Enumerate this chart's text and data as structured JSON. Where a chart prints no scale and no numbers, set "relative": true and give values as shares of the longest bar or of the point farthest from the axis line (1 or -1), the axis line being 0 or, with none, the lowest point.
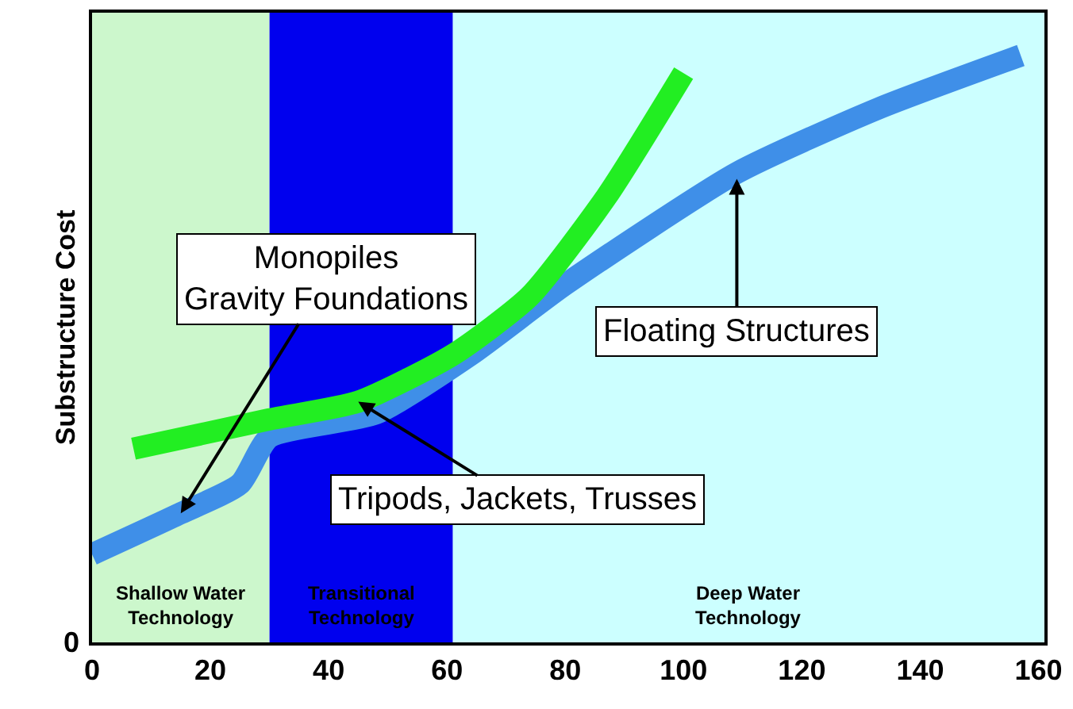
{
  "chart_data": {
    "type": "line",
    "ylabel": "Substructure Cost",
    "relative": true,
    "xlim": [
      0,
      161
    ],
    "xticks": [
      0,
      20,
      40,
      60,
      80,
      100,
      120,
      140,
      160
    ],
    "series": [
      {
        "color": "#3f8fe8",
        "x": [
          0,
          15,
          25,
          30,
          48,
          64,
          80,
          109,
          133,
          157
        ],
        "values": [
          0.15,
          0.22,
          0.27,
          0.35,
          0.39,
          0.49,
          0.61,
          0.8,
          0.91,
          1.0
        ]
      },
      {
        "color": "#22ee22",
        "x": [
          7,
          30,
          45,
          61,
          74,
          87,
          100
        ],
        "values": [
          0.33,
          0.38,
          0.41,
          0.49,
          0.59,
          0.76,
          0.97
        ]
      }
    ],
    "bands": [
      {
        "axis": "x",
        "from": 0,
        "to": 30,
        "label": "Shallow Water\nTechnology",
        "color": "#ccf7cc"
      },
      {
        "axis": "x",
        "from": 30,
        "to": 61,
        "label": "Transitional\nTechnology",
        "color": "#0000ee"
      },
      {
        "axis": "x",
        "from": 61,
        "to": 161,
        "label": "Deep Water\nTechnology",
        "color": "#ccffff"
      }
    ],
    "annotations": [
      {
        "text": "Monopiles\nGravity Foundations",
        "x": 15,
        "y": 0.22
      },
      {
        "text": "Tripods, Jackets, Trusses",
        "x": 45,
        "y": 0.41
      },
      {
        "text": "Floating Structures",
        "x": 109,
        "y": 0.79
      },
      "0"
    ],
    "grid": false,
    "marker": "none",
    "line_style": "solid"
  }
}
